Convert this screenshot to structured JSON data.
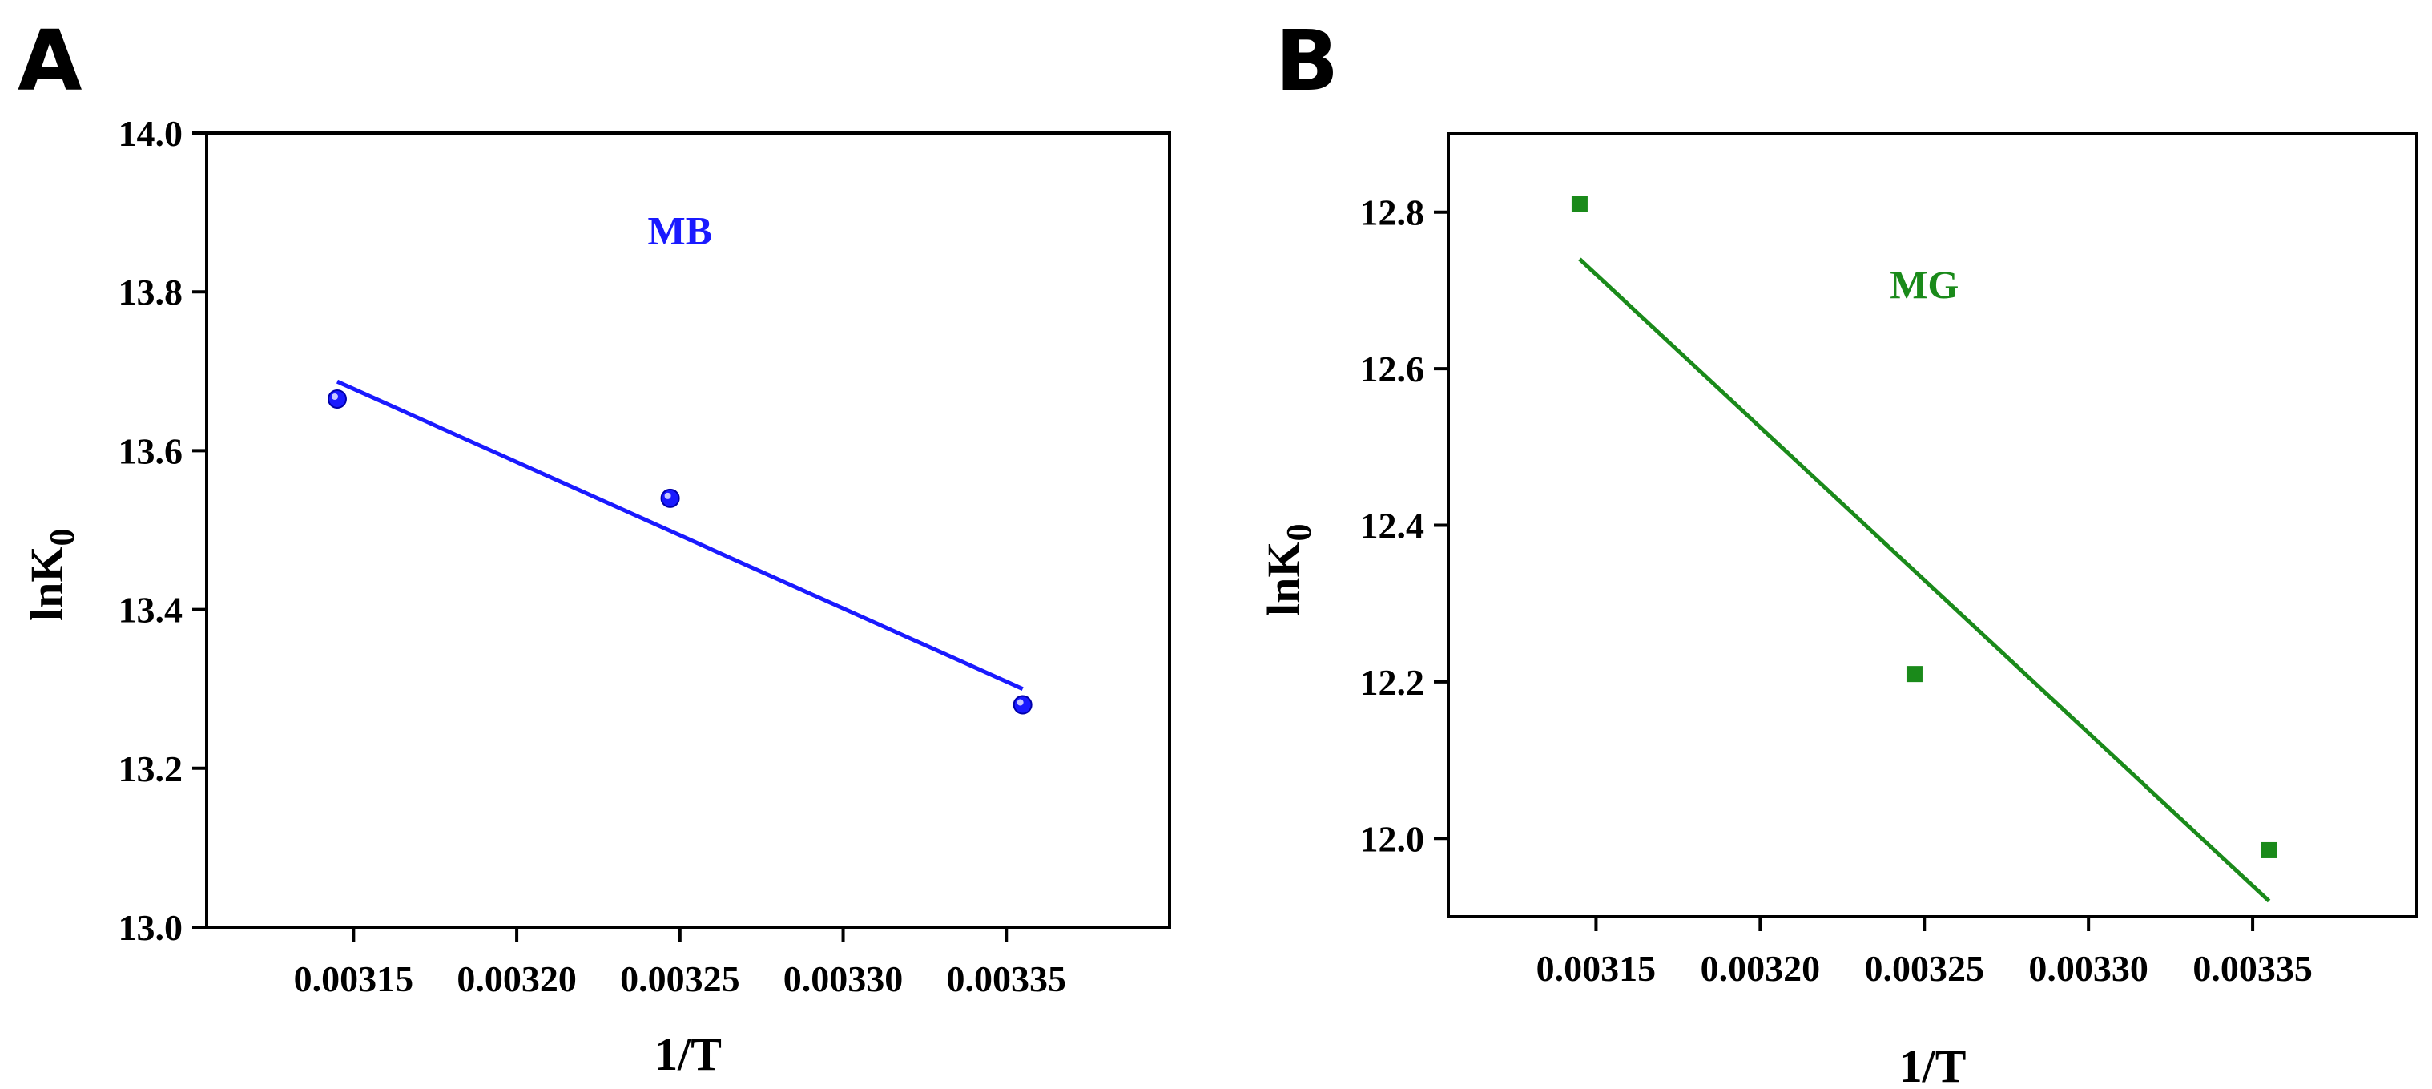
{
  "chart_data": [
    {
      "type": "scatter",
      "panel": "A",
      "title": "",
      "xlabel": "1/T",
      "ylabel_main": "lnK",
      "ylabel_sub": "0",
      "xlim": [
        0.003105,
        0.0034
      ],
      "ylim": [
        13.0,
        14.0
      ],
      "xticks": [
        0.00315,
        0.0032,
        0.00325,
        0.0033,
        0.00335
      ],
      "xtick_labels": [
        "0.00315",
        "0.00320",
        "0.00325",
        "0.00330",
        "0.00335"
      ],
      "yticks": [
        13.0,
        13.2,
        13.4,
        13.6,
        13.8,
        14.0
      ],
      "ytick_labels": [
        "13.0",
        "13.2",
        "13.4",
        "13.6",
        "13.8",
        "14.0"
      ],
      "series": [
        {
          "name": "MB",
          "marker": "circle",
          "color": "#1a1aff",
          "x": [
            0.003145,
            0.003247,
            0.003355
          ],
          "y": [
            13.665,
            13.54,
            13.28
          ],
          "fit": {
            "x": [
              0.003145,
              0.003355
            ],
            "y": [
              13.687,
              13.3
            ]
          }
        }
      ],
      "annotation": {
        "text": "MB",
        "x": 0.00325,
        "y": 13.86,
        "color": "#1a1aff"
      }
    },
    {
      "type": "scatter",
      "panel": "B",
      "title": "",
      "xlabel": "1/T",
      "ylabel_main": "lnK",
      "ylabel_sub": "0",
      "xlim": [
        0.003105,
        0.0034
      ],
      "ylim": [
        11.9,
        12.9
      ],
      "xticks": [
        0.00315,
        0.0032,
        0.00325,
        0.0033,
        0.00335
      ],
      "xtick_labels": [
        "0.00315",
        "0.00320",
        "0.00325",
        "0.00330",
        "0.00335"
      ],
      "yticks": [
        12.0,
        12.2,
        12.4,
        12.6,
        12.8
      ],
      "ytick_labels": [
        "12.0",
        "12.2",
        "12.4",
        "12.6",
        "12.8"
      ],
      "series": [
        {
          "name": "MG",
          "marker": "square",
          "color": "#1a8a1a",
          "x": [
            0.003145,
            0.003247,
            0.003355
          ],
          "y": [
            12.81,
            12.21,
            11.985
          ],
          "fit": {
            "x": [
              0.003145,
              0.003355
            ],
            "y": [
              12.74,
              11.92
            ]
          }
        }
      ],
      "annotation": {
        "text": "MG",
        "x": 0.00325,
        "y": 12.69,
        "color": "#1a8a1a"
      }
    }
  ]
}
